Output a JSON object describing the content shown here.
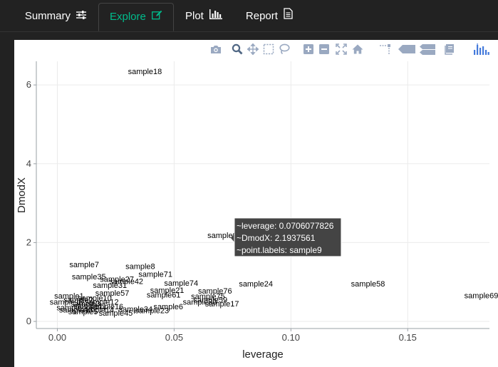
{
  "tabs": [
    {
      "label": "Summary",
      "icon": "sliders-icon",
      "active": false
    },
    {
      "label": "Explore",
      "icon": "edit-icon",
      "active": true
    },
    {
      "label": "Plot",
      "icon": "bar-chart-icon",
      "active": false
    },
    {
      "label": "Report",
      "icon": "document-icon",
      "active": false
    }
  ],
  "colors": {
    "background": "#222222",
    "active_tab": "#00bc8c",
    "modebar_icon": "#9aa9c1",
    "modebar_logo": "#447adb",
    "tooltip_bg": "#444444"
  },
  "modebar": {
    "buttons": [
      "camera-icon",
      "zoom-icon",
      "pan-icon",
      "box-select-icon",
      "lasso-icon",
      "zoom-in-icon",
      "zoom-out-icon",
      "autoscale-icon",
      "reset-axes-icon",
      "spike-lines-icon",
      "hover-closest-icon",
      "hover-compare-icon",
      "edit-chart-icon",
      "plotly-logo-icon"
    ]
  },
  "chart_data": {
    "type": "scatter",
    "xlabel": "leverage",
    "ylabel": "DmodX",
    "xlim": [
      -0.009,
      0.185
    ],
    "ylim": [
      -0.18,
      6.6
    ],
    "xticks": [
      "0.00",
      "0.05",
      "0.10",
      "0.15"
    ],
    "xtick_values": [
      0,
      0.05,
      0.1,
      0.15
    ],
    "yticks": [
      "0",
      "2",
      "4",
      "6"
    ],
    "ytick_values": [
      0,
      2,
      4,
      6
    ],
    "grid": true,
    "points": [
      {
        "label": "sample18",
        "x": 0.0375,
        "y": 6.35
      },
      {
        "label": "sample9",
        "x": 0.0706,
        "y": 2.19
      },
      {
        "label": "sample7",
        "x": 0.0115,
        "y": 1.45
      },
      {
        "label": "sample8",
        "x": 0.0355,
        "y": 1.4
      },
      {
        "label": "sample71",
        "x": 0.042,
        "y": 1.2
      },
      {
        "label": "sample35",
        "x": 0.0135,
        "y": 1.14
      },
      {
        "label": "sample27",
        "x": 0.0255,
        "y": 1.08
      },
      {
        "label": "sample42",
        "x": 0.0295,
        "y": 1.02
      },
      {
        "label": "sample74",
        "x": 0.053,
        "y": 0.98
      },
      {
        "label": "sample24",
        "x": 0.085,
        "y": 0.96
      },
      {
        "label": "sample58",
        "x": 0.133,
        "y": 0.96
      },
      {
        "label": "sample31",
        "x": 0.0225,
        "y": 0.92
      },
      {
        "label": "sample21",
        "x": 0.047,
        "y": 0.8
      },
      {
        "label": "sample76",
        "x": 0.0675,
        "y": 0.78
      },
      {
        "label": "sample57",
        "x": 0.0235,
        "y": 0.72
      },
      {
        "label": "sample69",
        "x": 0.1815,
        "y": 0.66
      },
      {
        "label": "sample61",
        "x": 0.0455,
        "y": 0.68
      },
      {
        "label": "sample75",
        "x": 0.0645,
        "y": 0.64
      },
      {
        "label": "sample59",
        "x": 0.0655,
        "y": 0.55
      },
      {
        "label": "sample30",
        "x": 0.061,
        "y": 0.5
      },
      {
        "label": "sample17",
        "x": 0.0705,
        "y": 0.45
      },
      {
        "label": "sample6",
        "x": 0.0475,
        "y": 0.38
      },
      {
        "label": "sample34",
        "x": 0.0335,
        "y": 0.32
      },
      {
        "label": "sample23",
        "x": 0.0405,
        "y": 0.28
      },
      {
        "label": "sample45",
        "x": 0.025,
        "y": 0.22
      },
      {
        "label": "sample1",
        "x": 0.005,
        "y": 0.65
      },
      {
        "label": "sample2",
        "x": 0.009,
        "y": 0.55
      },
      {
        "label": "sample3",
        "x": 0.012,
        "y": 0.45
      },
      {
        "label": "sample4",
        "x": 0.006,
        "y": 0.35
      },
      {
        "label": "sample5",
        "x": 0.011,
        "y": 0.25
      },
      {
        "label": "sample10",
        "x": 0.016,
        "y": 0.6
      },
      {
        "label": "sample11",
        "x": 0.014,
        "y": 0.4
      },
      {
        "label": "sample12",
        "x": 0.019,
        "y": 0.5
      },
      {
        "label": "sample13",
        "x": 0.008,
        "y": 0.3
      },
      {
        "label": "sample14",
        "x": 0.017,
        "y": 0.3
      },
      {
        "label": "sample15",
        "x": 0.004,
        "y": 0.5
      },
      {
        "label": "sample16",
        "x": 0.021,
        "y": 0.38
      }
    ],
    "tooltip": {
      "point": "sample9",
      "lines": [
        "~leverage: 0.0706077826",
        "~DmodX: 2.1937561",
        "~point.labels: sample9"
      ]
    }
  }
}
